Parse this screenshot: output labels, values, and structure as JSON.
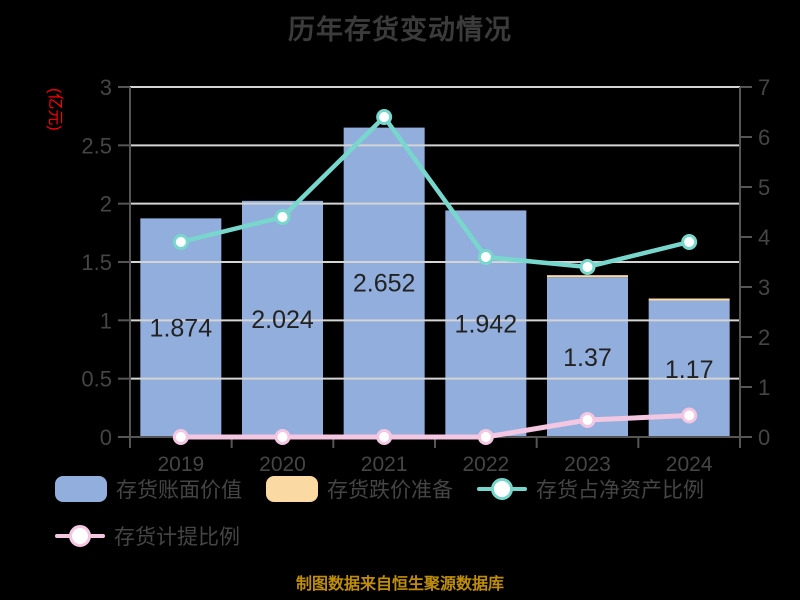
{
  "chart_data": {
    "type": "combo",
    "title": "历年存货变动情况",
    "categories": [
      "2019",
      "2020",
      "2021",
      "2022",
      "2023",
      "2024"
    ],
    "series": [
      {
        "name": "存货账面价值",
        "kind": "bar",
        "axis": "left",
        "values": [
          1.874,
          2.024,
          2.652,
          1.942,
          1.37,
          1.17
        ],
        "labels": [
          "1.874",
          "2.024",
          "2.652",
          "1.942",
          "1.37",
          "1.17"
        ],
        "color": "#91aedc"
      },
      {
        "name": "存货跌价准备",
        "kind": "bar-stacked",
        "axis": "left",
        "values": [
          0,
          0,
          0,
          0,
          0.01,
          0.01
        ],
        "color": "#fbd9a2"
      },
      {
        "name": "存货占净资产比例",
        "kind": "line",
        "axis": "right",
        "values": [
          3.9,
          4.4,
          6.4,
          3.6,
          3.4,
          3.9
        ],
        "color": "#78d7cd"
      },
      {
        "name": "存货计提比例",
        "kind": "line",
        "axis": "right",
        "values": [
          0,
          0,
          0,
          0,
          0.34,
          0.43
        ],
        "color": "#f3c6e2"
      }
    ],
    "left_axis": {
      "name": "(亿元)",
      "name_color": "#ff0000",
      "min": 0,
      "max": 3,
      "ticks": [
        "0",
        "0.5",
        "1",
        "1.5",
        "2",
        "2.5",
        "3"
      ]
    },
    "right_axis": {
      "min": 0,
      "max": 7,
      "ticks": [
        "0",
        "1",
        "2",
        "3",
        "4",
        "5",
        "6",
        "7"
      ]
    },
    "grid": true,
    "legend_position": "bottom"
  },
  "legend": {
    "items": [
      {
        "label": "存货账面价值",
        "type": "bar",
        "color": "#91aedc"
      },
      {
        "label": "存货跌价准备",
        "type": "bar",
        "color": "#fbd9a2"
      },
      {
        "label": "存货占净资产比例",
        "type": "line",
        "color": "#78d7cd"
      },
      {
        "label": "存货计提比例",
        "type": "line",
        "color": "#f3c6e2"
      }
    ]
  },
  "footer": {
    "text": "制图数据来自恒生聚源数据库",
    "color": "#be8e0b"
  },
  "colors": {
    "background": "#000000",
    "title": "#3b3b3b",
    "tick_label": "#454545",
    "bar_value_label": "#222222",
    "gridline": "#d4d4d4",
    "axis_spine": "#555555"
  }
}
